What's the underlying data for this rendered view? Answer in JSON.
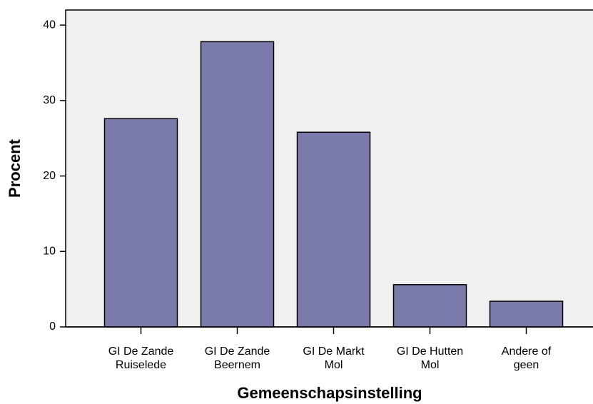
{
  "chart_data": {
    "type": "bar",
    "x_label": "Gemeenschapsinstelling",
    "y_label": "Procent",
    "categories": [
      [
        "GI De Zande",
        "Ruiselede"
      ],
      [
        "GI De Zande",
        "Beernem"
      ],
      [
        "GI De Markt",
        "Mol"
      ],
      [
        "GI De Hutten",
        "Mol"
      ],
      [
        "Andere of",
        "geen"
      ]
    ],
    "values": [
      27.6,
      37.8,
      25.8,
      5.6,
      3.4
    ],
    "color": "#7b7bab",
    "ylim": [
      0,
      42
    ],
    "yticks": [
      0,
      10,
      20,
      30,
      40
    ],
    "grid": false
  }
}
